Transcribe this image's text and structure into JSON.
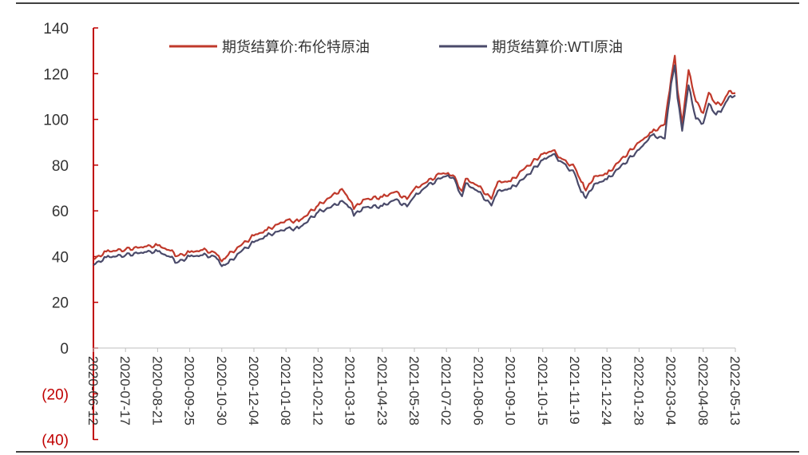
{
  "chart_data": {
    "type": "line",
    "title": "",
    "xlabel": "",
    "ylabel": "",
    "ylim": [
      -40,
      140
    ],
    "yticks": [
      -40,
      -20,
      0,
      20,
      40,
      60,
      80,
      100,
      120,
      140
    ],
    "ytick_labels": [
      "(40)",
      "(20)",
      "0",
      "20",
      "40",
      "60",
      "80",
      "100",
      "120",
      "140"
    ],
    "xtick_labels": [
      "2020-06-12",
      "2020-07-17",
      "2020-08-21",
      "2020-09-25",
      "2020-10-30",
      "2020-12-04",
      "2021-01-08",
      "2021-02-12",
      "2021-03-19",
      "2021-04-23",
      "2021-05-28",
      "2021-07-02",
      "2021-08-06",
      "2021-09-10",
      "2021-10-15",
      "2021-11-19",
      "2021-12-24",
      "2022-01-28",
      "2022-03-04",
      "2022-04-08",
      "2022-05-13"
    ],
    "x": [
      "2020-06-12",
      "2020-06-26",
      "2020-07-17",
      "2020-08-07",
      "2020-08-21",
      "2020-09-04",
      "2020-09-11",
      "2020-09-25",
      "2020-10-09",
      "2020-10-23",
      "2020-10-30",
      "2020-11-06",
      "2020-11-20",
      "2020-12-04",
      "2020-12-18",
      "2021-01-08",
      "2021-01-22",
      "2021-02-12",
      "2021-02-26",
      "2021-03-10",
      "2021-03-19",
      "2021-03-23",
      "2021-04-02",
      "2021-04-23",
      "2021-05-07",
      "2021-05-20",
      "2021-05-28",
      "2021-06-11",
      "2021-06-25",
      "2021-07-02",
      "2021-07-09",
      "2021-07-19",
      "2021-07-23",
      "2021-08-06",
      "2021-08-20",
      "2021-08-27",
      "2021-09-10",
      "2021-09-24",
      "2021-10-15",
      "2021-10-26",
      "2021-11-05",
      "2021-11-19",
      "2021-11-26",
      "2021-12-01",
      "2021-12-10",
      "2021-12-24",
      "2022-01-07",
      "2022-01-28",
      "2022-02-11",
      "2022-02-25",
      "2022-03-04",
      "2022-03-08",
      "2022-03-11",
      "2022-03-16",
      "2022-03-23",
      "2022-03-31",
      "2022-04-08",
      "2022-04-14",
      "2022-04-22",
      "2022-04-29",
      "2022-05-06",
      "2022-05-13"
    ],
    "series": [
      {
        "name": "期货结算价:布伦特原油",
        "color": "#c0392b",
        "values": [
          38.7,
          42.2,
          43.1,
          44.4,
          44.9,
          42.6,
          40.2,
          41.9,
          42.9,
          41.6,
          37.9,
          40.7,
          44.9,
          49.2,
          51.6,
          55.9,
          55.4,
          62.4,
          66.1,
          69.6,
          64.5,
          60.8,
          64.9,
          66.1,
          68.3,
          65.1,
          69.6,
          72.7,
          76.2,
          76.2,
          75.6,
          68.6,
          74.1,
          70.7,
          65.2,
          72.7,
          72.9,
          78.1,
          84.9,
          86.4,
          82.7,
          78.9,
          72.7,
          68.9,
          75.1,
          76.1,
          81.8,
          90.0,
          94.4,
          97.9,
          118.1,
          127.9,
          112.7,
          98.0,
          121.6,
          107.9,
          102.8,
          111.7,
          106.7,
          107.1,
          112.4,
          111.5
        ]
      },
      {
        "name": "期货结算价:WTI原油",
        "color": "#4a4a6a",
        "values": [
          36.3,
          39.7,
          40.6,
          42.0,
          42.3,
          39.8,
          37.3,
          40.1,
          40.6,
          39.9,
          35.8,
          37.1,
          42.2,
          46.3,
          49.1,
          52.2,
          52.3,
          59.5,
          61.5,
          64.4,
          61.4,
          57.8,
          61.5,
          62.1,
          64.9,
          61.9,
          66.3,
          70.9,
          74.1,
          75.2,
          74.6,
          66.4,
          72.1,
          68.3,
          62.3,
          68.7,
          69.7,
          73.9,
          82.3,
          84.7,
          81.3,
          76.1,
          68.2,
          65.6,
          71.7,
          73.8,
          78.9,
          86.8,
          93.1,
          91.6,
          115.7,
          123.7,
          109.3,
          95.0,
          114.9,
          100.3,
          98.3,
          106.9,
          102.1,
          104.7,
          109.8,
          110.5
        ]
      }
    ],
    "legend_position": "top",
    "grid": false
  }
}
